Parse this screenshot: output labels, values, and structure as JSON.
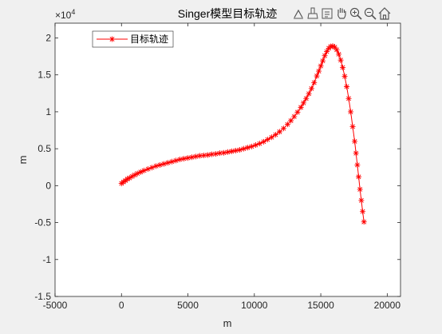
{
  "chart_data": {
    "type": "line",
    "title": "Singer模型目标轨迹",
    "xlabel": "m",
    "ylabel": "m",
    "xlim": [
      -5000,
      21000
    ],
    "ylim": [
      -15000,
      22000
    ],
    "xticks": [
      -5000,
      0,
      5000,
      10000,
      15000,
      20000
    ],
    "xtick_labels": [
      "-5000",
      "0",
      "5000",
      "10000",
      "15000",
      "20000"
    ],
    "yticks": [
      -15000,
      -10000,
      -5000,
      0,
      5000,
      10000,
      15000,
      20000
    ],
    "ytick_labels": [
      "-1.5",
      "-1",
      "-0.5",
      "0",
      "0.5",
      "1",
      "1.5",
      "2"
    ],
    "y_exponent_label": "×10",
    "y_exponent_power": "4",
    "grid": false,
    "legend_position": "top-left",
    "marker": "*",
    "series": [
      {
        "name": "目标轨迹",
        "color": "#ff0000",
        "x": [
          0,
          150,
          300,
          450,
          600,
          800,
          1000,
          1200,
          1450,
          1700,
          2000,
          2300,
          2600,
          2900,
          3200,
          3500,
          3800,
          4100,
          4400,
          4700,
          5000,
          5300,
          5600,
          5900,
          6200,
          6500,
          6800,
          7100,
          7400,
          7700,
          8000,
          8300,
          8600,
          8900,
          9200,
          9500,
          9800,
          10100,
          10400,
          10700,
          11000,
          11300,
          11600,
          11900,
          12200,
          12500,
          12750,
          13000,
          13250,
          13500,
          13700,
          13900,
          14100,
          14300,
          14500,
          14700,
          14850,
          15000,
          15150,
          15300,
          15450,
          15600,
          15750,
          15900,
          16050,
          16200,
          16350,
          16500,
          16650,
          16800,
          16950,
          17100,
          17250,
          17400,
          17550,
          17650,
          17750,
          17850,
          17950,
          18050,
          18150,
          18250
        ],
        "y": [
          300,
          500,
          700,
          900,
          1050,
          1250,
          1450,
          1650,
          1850,
          2050,
          2250,
          2450,
          2650,
          2800,
          2950,
          3100,
          3250,
          3400,
          3550,
          3650,
          3750,
          3850,
          3950,
          4050,
          4100,
          4150,
          4250,
          4300,
          4400,
          4450,
          4550,
          4650,
          4750,
          4850,
          5000,
          5150,
          5300,
          5500,
          5700,
          5950,
          6250,
          6550,
          6900,
          7300,
          7750,
          8300,
          8800,
          9350,
          9950,
          10600,
          11200,
          11800,
          12450,
          13150,
          13950,
          14850,
          15500,
          16200,
          16900,
          17600,
          18150,
          18600,
          18850,
          18900,
          18750,
          18400,
          17800,
          17000,
          16000,
          14800,
          13400,
          11800,
          10000,
          8000,
          6000,
          4400,
          2800,
          1200,
          -500,
          -2000,
          -3500,
          -4900
        ]
      }
    ]
  },
  "toolbar": {
    "icons": [
      "data-tips-icon",
      "brush-icon",
      "link-plot-icon",
      "pan-hand-icon",
      "zoom-in-icon",
      "zoom-out-icon",
      "home-icon"
    ]
  }
}
